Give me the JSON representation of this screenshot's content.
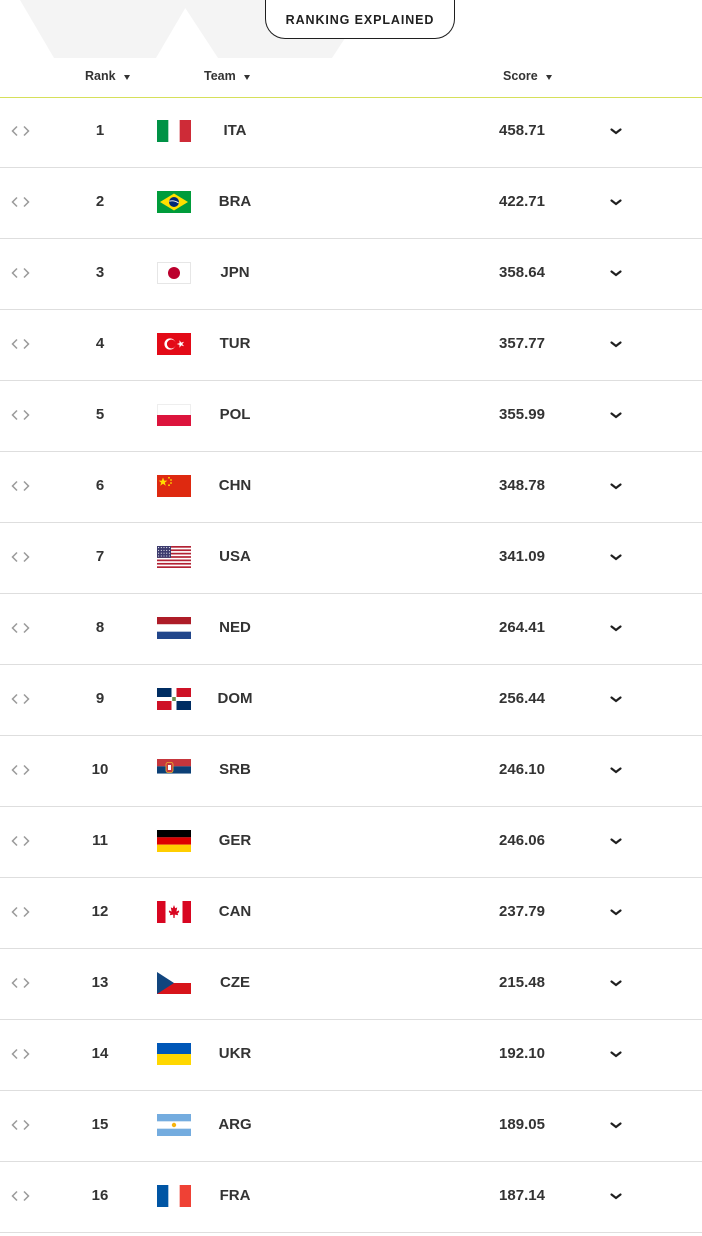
{
  "header": {
    "ranking_explained_label": "RANKING EXPLAINED"
  },
  "columns": {
    "rank": "Rank",
    "team": "Team",
    "score": "Score"
  },
  "rows": [
    {
      "rank": "1",
      "team": "ITA",
      "score": "458.71"
    },
    {
      "rank": "2",
      "team": "BRA",
      "score": "422.71"
    },
    {
      "rank": "3",
      "team": "JPN",
      "score": "358.64"
    },
    {
      "rank": "4",
      "team": "TUR",
      "score": "357.77"
    },
    {
      "rank": "5",
      "team": "POL",
      "score": "355.99"
    },
    {
      "rank": "6",
      "team": "CHN",
      "score": "348.78"
    },
    {
      "rank": "7",
      "team": "USA",
      "score": "341.09"
    },
    {
      "rank": "8",
      "team": "NED",
      "score": "264.41"
    },
    {
      "rank": "9",
      "team": "DOM",
      "score": "256.44"
    },
    {
      "rank": "10",
      "team": "SRB",
      "score": "246.10"
    },
    {
      "rank": "11",
      "team": "GER",
      "score": "246.06"
    },
    {
      "rank": "12",
      "team": "CAN",
      "score": "237.79"
    },
    {
      "rank": "13",
      "team": "CZE",
      "score": "215.48"
    },
    {
      "rank": "14",
      "team": "UKR",
      "score": "192.10"
    },
    {
      "rank": "15",
      "team": "ARG",
      "score": "189.05"
    },
    {
      "rank": "16",
      "team": "FRA",
      "score": "187.14"
    }
  ],
  "colors": {
    "accent_line": "#d6e05a",
    "text": "#333333",
    "row_divider": "#dedede"
  },
  "icons": {
    "row_move": "left-right-arrows-icon",
    "row_expand": "chevron-down-icon",
    "sort": "caret-down-icon"
  }
}
